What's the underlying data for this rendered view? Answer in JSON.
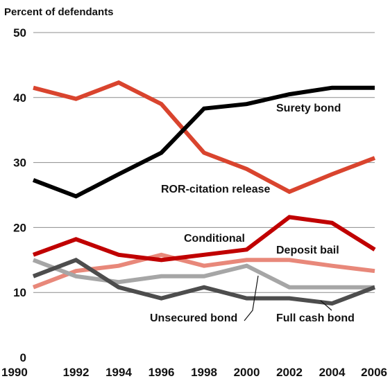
{
  "chart_data": {
    "type": "line",
    "title": "",
    "xlabel": "",
    "ylabel": "Percent of defendants",
    "ylim": [
      0,
      50
    ],
    "yticks": [
      0,
      10,
      20,
      30,
      40,
      50
    ],
    "grid": true,
    "legend": "inline labels",
    "x": [
      1990,
      1992,
      1994,
      1996,
      1998,
      2000,
      2002,
      2004,
      2006
    ],
    "x_tick_labels": [
      "1990",
      "1992",
      "1994",
      "1996",
      "1998",
      "2000",
      "2002",
      "2004",
      "2006"
    ],
    "series": [
      {
        "name": "Surety bond",
        "color": "#000000",
        "values": [
          27.3,
          24.8,
          28.2,
          31.5,
          38.3,
          39.0,
          40.5,
          41.5,
          41.5
        ]
      },
      {
        "name": "ROR-citation release",
        "color": "#d9442e",
        "values": [
          41.5,
          39.8,
          42.3,
          39.0,
          31.5,
          29.0,
          25.5,
          28.2,
          30.7
        ]
      },
      {
        "name": "Conditional",
        "color": "#c00000",
        "values": [
          15.8,
          18.2,
          15.8,
          15.0,
          15.8,
          16.6,
          21.6,
          20.7,
          16.6
        ]
      },
      {
        "name": "Deposit bail",
        "color": "#e8887a",
        "values": [
          10.8,
          13.3,
          14.1,
          15.8,
          14.1,
          15.0,
          15.0,
          14.1,
          13.3
        ]
      },
      {
        "name": "Unsecured bond",
        "color": "#a6a6a6",
        "values": [
          15.0,
          12.5,
          11.6,
          12.5,
          12.5,
          14.1,
          10.8,
          10.8,
          10.8
        ]
      },
      {
        "name": "Full cash bond",
        "color": "#4d4d4d",
        "values": [
          12.5,
          15.0,
          10.8,
          9.1,
          10.8,
          9.1,
          9.1,
          8.3,
          10.8
        ]
      }
    ]
  }
}
